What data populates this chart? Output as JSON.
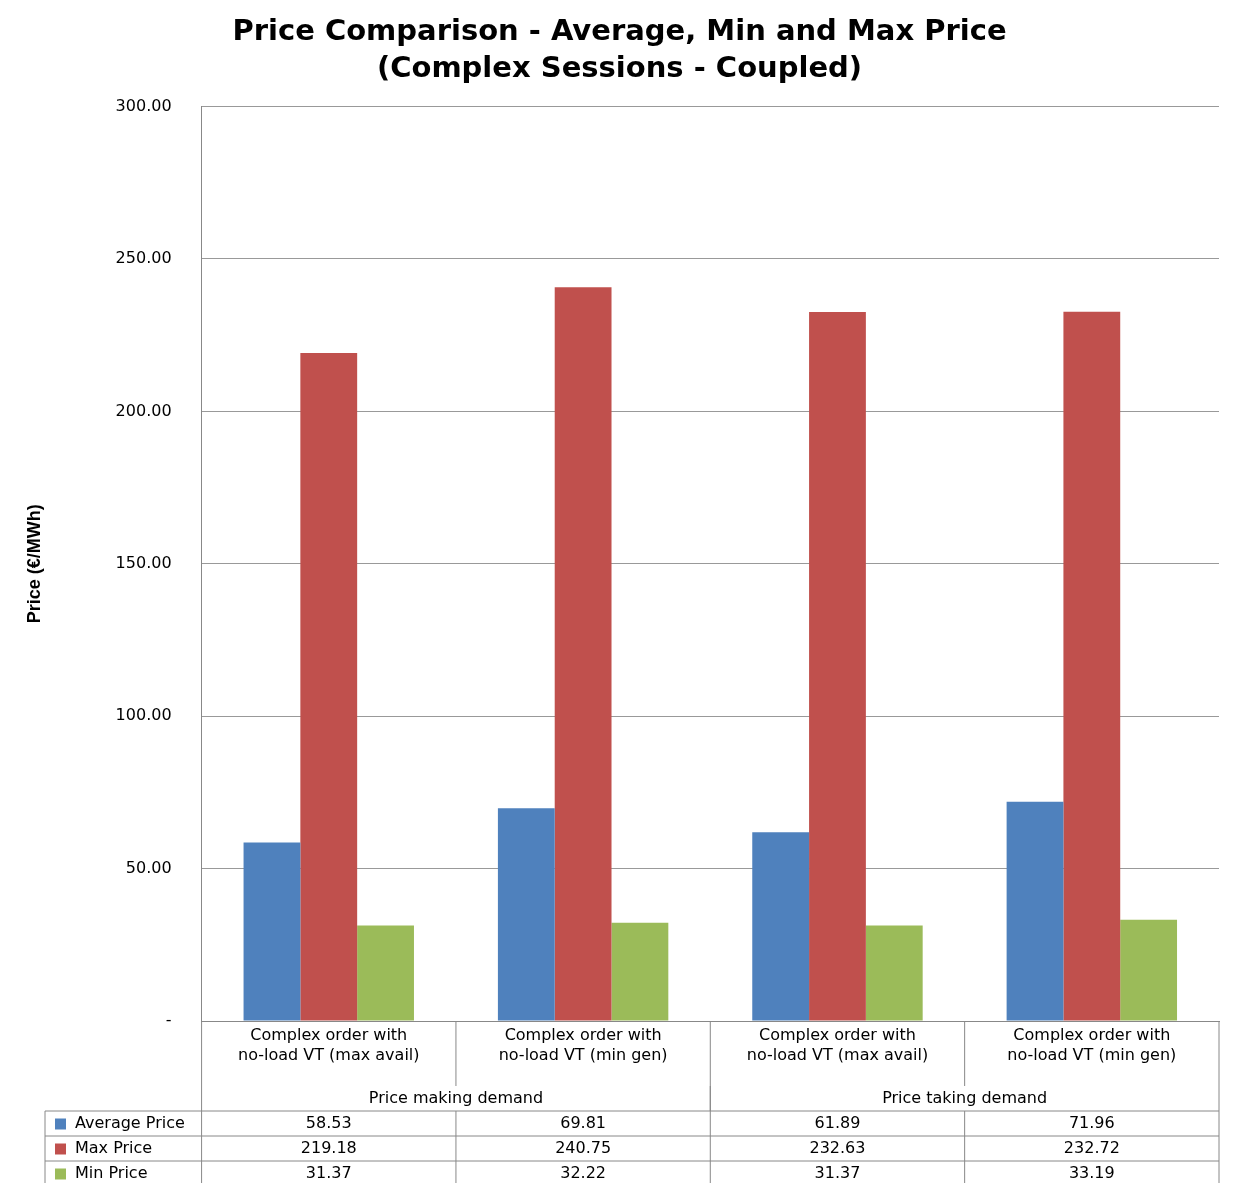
{
  "chart_data": {
    "type": "bar",
    "title": "Price Comparison - Average, Min and Max Price",
    "subtitle": "(Complex Sessions - Coupled)",
    "ylabel": "Price (€/MWh)",
    "categories": [
      "Complex order with no-load VT (max avail)",
      "Complex order with no-load VT (min gen)",
      "Complex order with no-load VT (max avail)",
      "Complex order with no-load VT (min gen)"
    ],
    "annotations": [
      "Price making demand",
      "Price taking demand"
    ],
    "series": [
      {
        "name": "Average Price",
        "color": "#4f81bd",
        "values": [
          58.53,
          69.81,
          61.89,
          71.96
        ]
      },
      {
        "name": "Max Price",
        "color": "#c0504d",
        "values": [
          219.18,
          240.75,
          232.63,
          232.72
        ]
      },
      {
        "name": "Min Price",
        "color": "#9bbb59",
        "values": [
          31.37,
          32.22,
          31.37,
          33.19
        ]
      }
    ],
    "ylim": [
      0,
      300
    ],
    "yticks": [
      {
        "value": 0,
        "label": "-"
      },
      {
        "value": 50,
        "label": "50.00"
      },
      {
        "value": 100,
        "label": "100.00"
      },
      {
        "value": 150,
        "label": "150.00"
      },
      {
        "value": 200,
        "label": "200.00"
      },
      {
        "value": 250,
        "label": "250.00"
      },
      {
        "value": 300,
        "label": "300.00"
      }
    ],
    "grid": "y",
    "legend": "bottom",
    "data_labels": true
  }
}
